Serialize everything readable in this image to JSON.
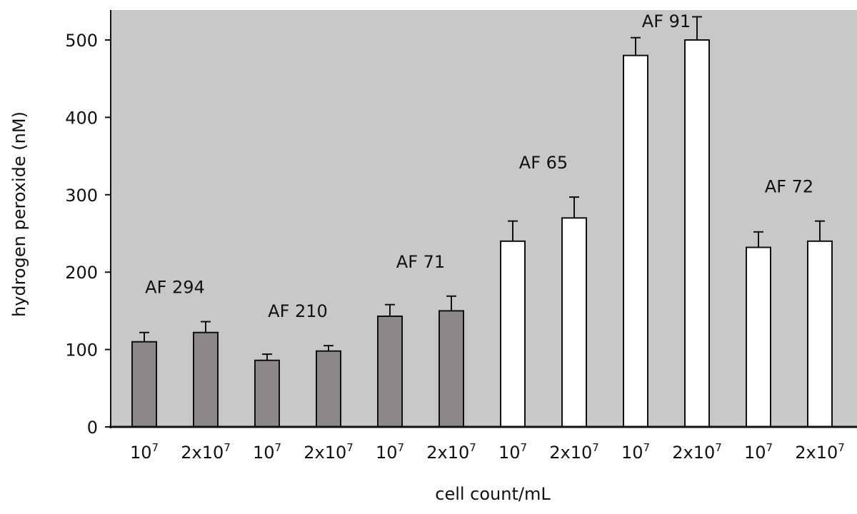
{
  "chart_data": {
    "type": "bar",
    "title": "",
    "xlabel": "cell count/mL",
    "ylabel": "hydrogen peroxide (nM)",
    "ylim": [
      0,
      550
    ],
    "yticks": [
      0,
      100,
      200,
      300,
      400,
      500
    ],
    "grid": false,
    "background": "#c8c8c8",
    "colors": {
      "group_a": "#8a8888",
      "group_b": "#ffffff",
      "outline": "#111111"
    },
    "categories": [
      "10^7",
      "2x10^7",
      "10^7",
      "2x10^7",
      "10^7",
      "2x10^7",
      "10^7",
      "2x10^7",
      "10^7",
      "2x10^7",
      "10^7",
      "2x10^7"
    ],
    "tick_label_base": "10",
    "tick_label_prefix_2x": "2x10",
    "tick_label_exp": "7",
    "bars": [
      {
        "strain": "AF 294",
        "cells": "10^7",
        "value": 110,
        "error": 12,
        "fill": "gray"
      },
      {
        "strain": "AF 294",
        "cells": "2x10^7",
        "value": 122,
        "error": 14,
        "fill": "gray"
      },
      {
        "strain": "AF 210",
        "cells": "10^7",
        "value": 86,
        "error": 8,
        "fill": "gray"
      },
      {
        "strain": "AF 210",
        "cells": "2x10^7",
        "value": 98,
        "error": 7,
        "fill": "gray"
      },
      {
        "strain": "AF 71",
        "cells": "10^7",
        "value": 143,
        "error": 15,
        "fill": "gray"
      },
      {
        "strain": "AF 71",
        "cells": "2x10^7",
        "value": 150,
        "error": 19,
        "fill": "gray"
      },
      {
        "strain": "AF 65",
        "cells": "10^7",
        "value": 240,
        "error": 26,
        "fill": "white"
      },
      {
        "strain": "AF 65",
        "cells": "2x10^7",
        "value": 270,
        "error": 27,
        "fill": "white"
      },
      {
        "strain": "AF 91",
        "cells": "10^7",
        "value": 480,
        "error": 23,
        "fill": "white"
      },
      {
        "strain": "AF 91",
        "cells": "2x10^7",
        "value": 500,
        "error": 30,
        "fill": "white"
      },
      {
        "strain": "AF 72",
        "cells": "10^7",
        "value": 232,
        "error": 20,
        "fill": "white"
      },
      {
        "strain": "AF 72",
        "cells": "2x10^7",
        "value": 240,
        "error": 26,
        "fill": "white"
      }
    ],
    "annotations": [
      "AF 294",
      "AF 210",
      "AF 71",
      "AF 65",
      "AF 91",
      "AF 72"
    ]
  }
}
